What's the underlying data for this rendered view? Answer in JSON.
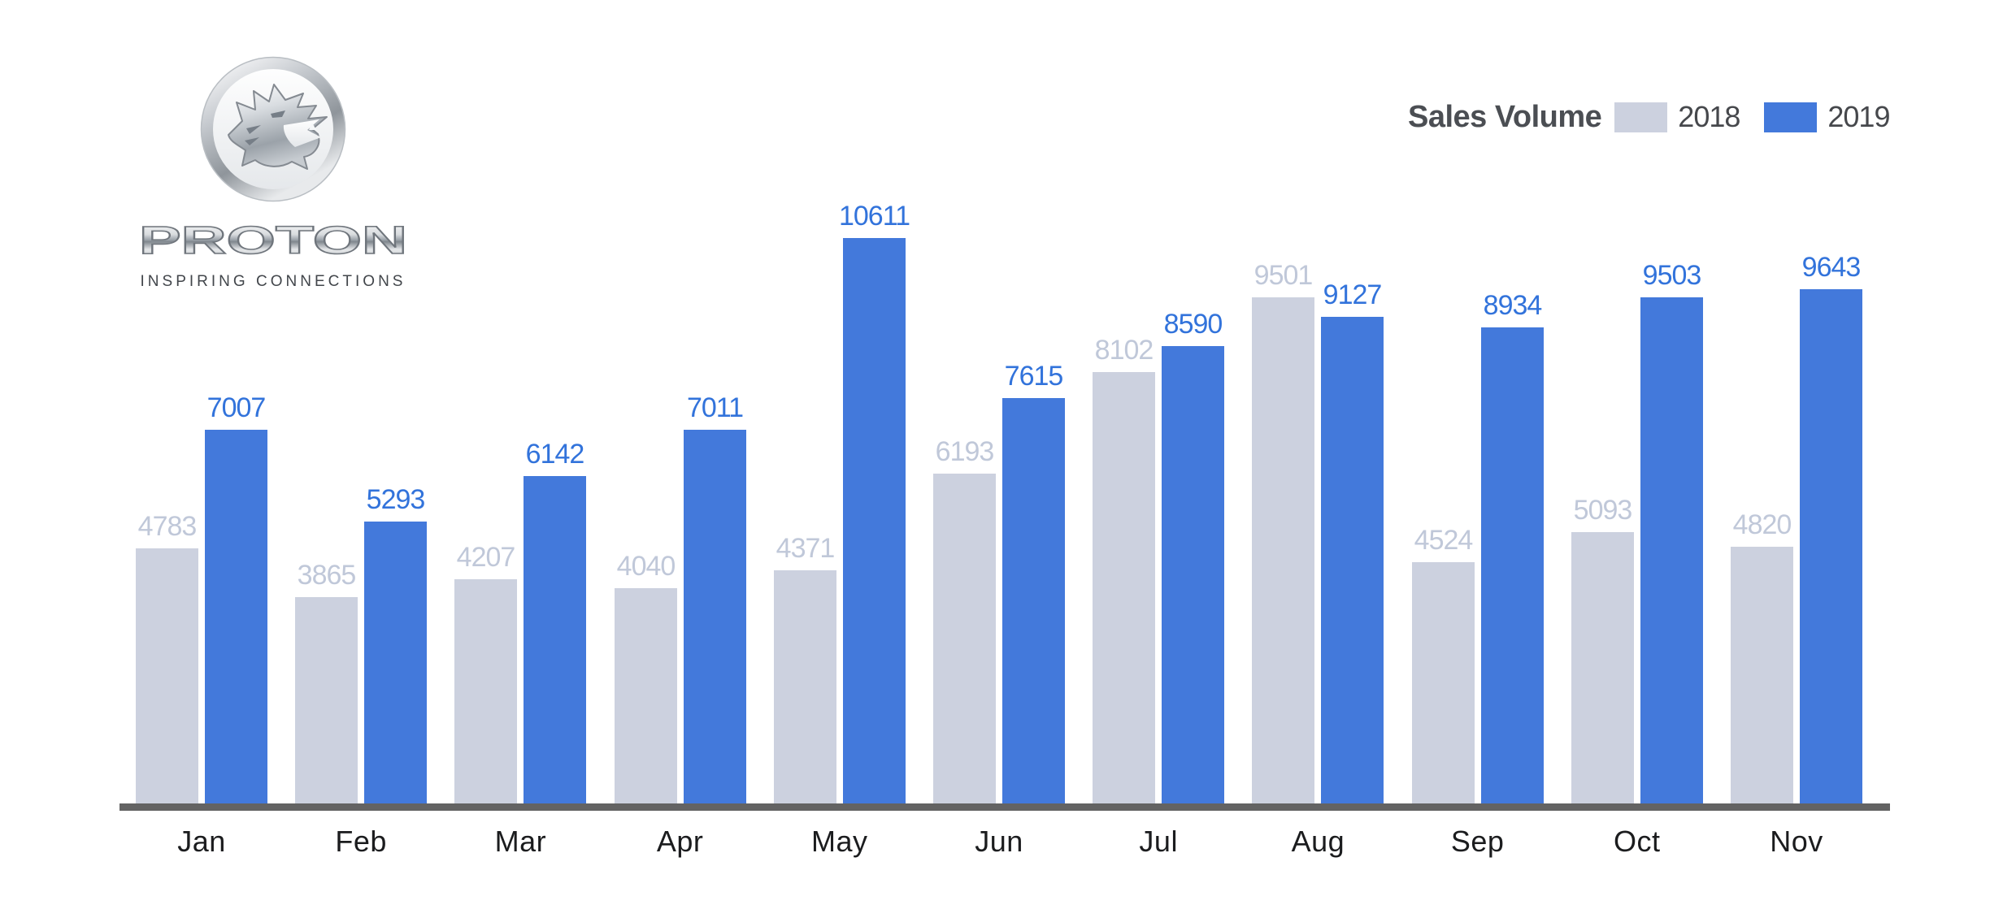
{
  "logo": {
    "brand": "PROTON",
    "tagline": "INSPIRING CONNECTIONS"
  },
  "legend": {
    "title": "Sales Volume",
    "position": "top-right",
    "items": [
      {
        "label": "2018",
        "color": "#ccd1df"
      },
      {
        "label": "2019",
        "color": "#4379db"
      }
    ]
  },
  "chart_data": {
    "type": "bar",
    "title": "Sales Volume",
    "categories": [
      "Jan",
      "Feb",
      "Mar",
      "Apr",
      "May",
      "Jun",
      "Jul",
      "Aug",
      "Sep",
      "Oct",
      "Nov"
    ],
    "series": [
      {
        "name": "2018",
        "color": "#ccd1df",
        "label_color": "#c0c8d9",
        "values": [
          4783,
          3865,
          4207,
          4040,
          4371,
          6193,
          8102,
          9501,
          4524,
          5093,
          4820
        ]
      },
      {
        "name": "2019",
        "color": "#4379db",
        "label_color": "#3273db",
        "values": [
          7007,
          5293,
          6142,
          7011,
          10611,
          7615,
          8590,
          9127,
          8934,
          9503,
          9643
        ]
      }
    ],
    "xlabel": "",
    "ylabel": "",
    "ylim": [
      0,
      10611
    ],
    "grid": false,
    "value_labels": true,
    "axis_line_color": "#636363",
    "month_label_color": "#1b1c1e"
  }
}
